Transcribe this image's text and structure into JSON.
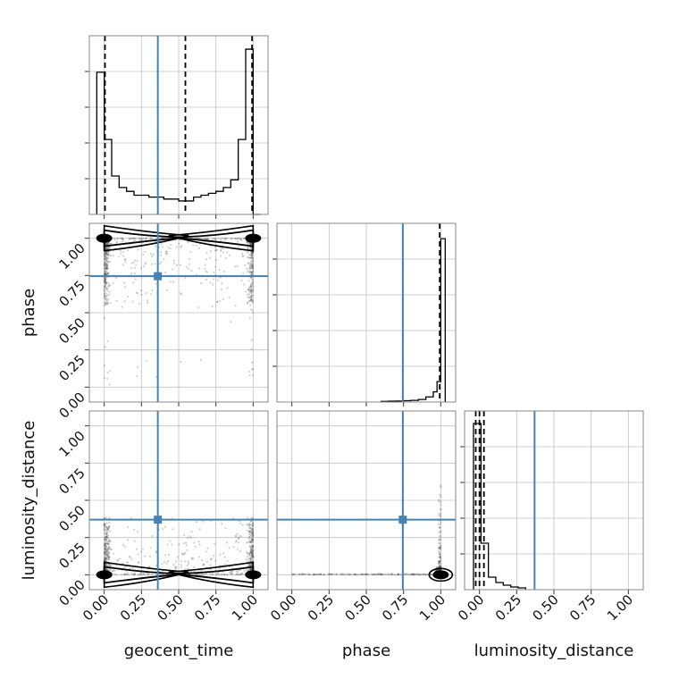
{
  "chart_data": {
    "type": "corner",
    "parameters": [
      "geocent_time",
      "phase",
      "luminosity_distance"
    ],
    "axis_range": [
      -0.1,
      1.1
    ],
    "ticks": [
      0.0,
      0.25,
      0.5,
      0.75,
      1.0
    ],
    "tick_labels": [
      "0.00",
      "0.25",
      "0.50",
      "0.75",
      "1.00"
    ],
    "grid": true,
    "colors": {
      "truth": "#4682b4",
      "histogram": "#000000",
      "scatter": "#555555",
      "contour": "#000000",
      "grid": "#c0c0c0",
      "frame": "#888888"
    },
    "truths": {
      "geocent_time": 0.36,
      "phase": 0.745,
      "luminosity_distance": 0.37
    },
    "quantiles": {
      "geocent_time": [
        0.005,
        0.545,
        0.993
      ],
      "phase": [
        0.993
      ],
      "luminosity_distance": [
        -0.025,
        0.0,
        0.03
      ]
    },
    "histograms": {
      "geocent_time": {
        "bin_edges": [
          -0.05,
          0.0,
          0.05,
          0.1,
          0.15,
          0.2,
          0.25,
          0.3,
          0.35,
          0.4,
          0.45,
          0.5,
          0.55,
          0.6,
          0.65,
          0.7,
          0.75,
          0.8,
          0.85,
          0.9,
          0.95,
          1.0,
          1.05
        ],
        "counts": [
          0.74,
          0.39,
          0.2,
          0.14,
          0.12,
          0.1,
          0.1,
          0.09,
          0.09,
          0.08,
          0.08,
          0.07,
          0.07,
          0.09,
          0.1,
          0.11,
          0.12,
          0.14,
          0.18,
          0.39,
          0.86,
          0.0
        ],
        "ylim": [
          0,
          0.93
        ]
      },
      "phase": {
        "bin_edges": [
          0.6,
          0.65,
          0.7,
          0.75,
          0.8,
          0.85,
          0.9,
          0.95,
          0.975,
          1.0,
          1.03
        ],
        "counts": [
          0.004,
          0.005,
          0.006,
          0.008,
          0.01,
          0.015,
          0.03,
          0.06,
          0.12,
          0.96
        ],
        "ylim": [
          0,
          1.05
        ]
      },
      "luminosity_distance": {
        "bin_edges": [
          -0.04,
          0.01,
          0.06,
          0.11,
          0.16,
          0.21,
          0.26,
          0.31
        ],
        "counts": [
          0.93,
          0.26,
          0.07,
          0.04,
          0.025,
          0.015,
          0.01
        ],
        "ylim": [
          0,
          1.0
        ]
      }
    },
    "panels": [
      {
        "x": "geocent_time",
        "y": "phase",
        "samples": "bimodal-edge",
        "contour_modes": [
          [
            0.0,
            1.0
          ],
          [
            1.0,
            1.0
          ]
        ]
      },
      {
        "x": "geocent_time",
        "y": "luminosity_distance",
        "samples": "bimodal-edge",
        "contour_modes": [
          [
            0.0,
            0.0
          ],
          [
            1.0,
            0.0
          ]
        ]
      },
      {
        "x": "phase",
        "y": "luminosity_distance",
        "samples": "corner-cluster",
        "contour_modes": [
          [
            1.0,
            0.0
          ]
        ]
      }
    ]
  }
}
